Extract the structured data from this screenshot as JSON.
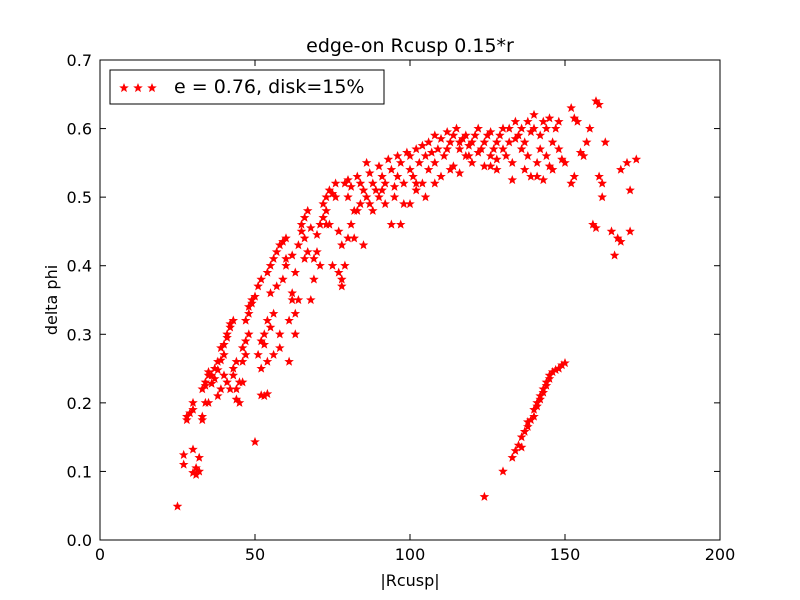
{
  "chart_data": {
    "type": "scatter",
    "title": "edge-on Rcusp 0.15*r",
    "xlabel": "|Rcusp|",
    "ylabel": "delta phi",
    "xlim": [
      0,
      200
    ],
    "ylim": [
      0.0,
      0.7
    ],
    "x_ticks": [
      "0",
      "50",
      "100",
      "150",
      "200"
    ],
    "y_ticks": [
      "0.0",
      "0.1",
      "0.2",
      "0.3",
      "0.4",
      "0.5",
      "0.6",
      "0.7"
    ],
    "grid": false,
    "legend_position": "top-left",
    "marker": "star",
    "color": "#ff0000",
    "series": [
      {
        "name": "e = 0.76, disk=15%",
        "points": [
          [
            25,
            0.049
          ],
          [
            27,
            0.11
          ],
          [
            27,
            0.124
          ],
          [
            28,
            0.175
          ],
          [
            28,
            0.18
          ],
          [
            29,
            0.185
          ],
          [
            30,
            0.19
          ],
          [
            30,
            0.2
          ],
          [
            30,
            0.098
          ],
          [
            31,
            0.095
          ],
          [
            31,
            0.105
          ],
          [
            30,
            0.132
          ],
          [
            32,
            0.12
          ],
          [
            32,
            0.1
          ],
          [
            33,
            0.175
          ],
          [
            33,
            0.18
          ],
          [
            33,
            0.22
          ],
          [
            34,
            0.225
          ],
          [
            34,
            0.23
          ],
          [
            35,
            0.24
          ],
          [
            35,
            0.245
          ],
          [
            36,
            0.228
          ],
          [
            37,
            0.25
          ],
          [
            38,
            0.21
          ],
          [
            38,
            0.248
          ],
          [
            39,
            0.262
          ],
          [
            39,
            0.28
          ],
          [
            40,
            0.285
          ],
          [
            40,
            0.27
          ],
          [
            41,
            0.295
          ],
          [
            41,
            0.3
          ],
          [
            42,
            0.31
          ],
          [
            42,
            0.315
          ],
          [
            43,
            0.32
          ],
          [
            43,
            0.25
          ],
          [
            44,
            0.22
          ],
          [
            44,
            0.205
          ],
          [
            45,
            0.2
          ],
          [
            46,
            0.23
          ],
          [
            46,
            0.26
          ],
          [
            47,
            0.27
          ],
          [
            47,
            0.32
          ],
          [
            48,
            0.33
          ],
          [
            48,
            0.34
          ],
          [
            49,
            0.345
          ],
          [
            49,
            0.35
          ],
          [
            50,
            0.355
          ],
          [
            50,
            0.143
          ],
          [
            51,
            0.37
          ],
          [
            52,
            0.38
          ],
          [
            52,
            0.29
          ],
          [
            53,
            0.21
          ],
          [
            53,
            0.285
          ],
          [
            54,
            0.32
          ],
          [
            54,
            0.39
          ],
          [
            55,
            0.4
          ],
          [
            55,
            0.36
          ],
          [
            56,
            0.41
          ],
          [
            56,
            0.33
          ],
          [
            57,
            0.42
          ],
          [
            57,
            0.37
          ],
          [
            58,
            0.43
          ],
          [
            58,
            0.3
          ],
          [
            59,
            0.38
          ],
          [
            59,
            0.435
          ],
          [
            60,
            0.44
          ],
          [
            60,
            0.4
          ],
          [
            61,
            0.26
          ],
          [
            62,
            0.35
          ],
          [
            62,
            0.415
          ],
          [
            63,
            0.39
          ],
          [
            63,
            0.3
          ],
          [
            64,
            0.43
          ],
          [
            65,
            0.45
          ],
          [
            65,
            0.46
          ],
          [
            66,
            0.44
          ],
          [
            66,
            0.47
          ],
          [
            67,
            0.42
          ],
          [
            67,
            0.48
          ],
          [
            68,
            0.455
          ],
          [
            68,
            0.35
          ],
          [
            69,
            0.38
          ],
          [
            70,
            0.445
          ],
          [
            70,
            0.42
          ],
          [
            71,
            0.46
          ],
          [
            72,
            0.47
          ],
          [
            72,
            0.49
          ],
          [
            73,
            0.5
          ],
          [
            73,
            0.48
          ],
          [
            74,
            0.51
          ],
          [
            74,
            0.46
          ],
          [
            75,
            0.505
          ],
          [
            75,
            0.4
          ],
          [
            76,
            0.52
          ],
          [
            76,
            0.5
          ],
          [
            77,
            0.45
          ],
          [
            77,
            0.39
          ],
          [
            78,
            0.37
          ],
          [
            78,
            0.43
          ],
          [
            79,
            0.52
          ],
          [
            80,
            0.525
          ],
          [
            80,
            0.5
          ],
          [
            81,
            0.515
          ],
          [
            82,
            0.48
          ],
          [
            82,
            0.44
          ],
          [
            83,
            0.53
          ],
          [
            84,
            0.52
          ],
          [
            84,
            0.49
          ],
          [
            85,
            0.51
          ],
          [
            85,
            0.43
          ],
          [
            86,
            0.55
          ],
          [
            86,
            0.5
          ],
          [
            87,
            0.535
          ],
          [
            88,
            0.52
          ],
          [
            88,
            0.48
          ],
          [
            89,
            0.51
          ],
          [
            90,
            0.545
          ],
          [
            90,
            0.5
          ],
          [
            91,
            0.53
          ],
          [
            92,
            0.52
          ],
          [
            92,
            0.49
          ],
          [
            93,
            0.555
          ],
          [
            94,
            0.54
          ],
          [
            94,
            0.46
          ],
          [
            95,
            0.515
          ],
          [
            96,
            0.53
          ],
          [
            96,
            0.56
          ],
          [
            97,
            0.55
          ],
          [
            98,
            0.52
          ],
          [
            98,
            0.49
          ],
          [
            99,
            0.565
          ],
          [
            100,
            0.56
          ],
          [
            100,
            0.54
          ],
          [
            101,
            0.53
          ],
          [
            102,
            0.51
          ],
          [
            102,
            0.57
          ],
          [
            103,
            0.55
          ],
          [
            104,
            0.575
          ],
          [
            104,
            0.52
          ],
          [
            105,
            0.56
          ],
          [
            106,
            0.58
          ],
          [
            106,
            0.54
          ],
          [
            107,
            0.565
          ],
          [
            108,
            0.59
          ],
          [
            108,
            0.55
          ],
          [
            109,
            0.57
          ],
          [
            110,
            0.585
          ],
          [
            110,
            0.53
          ],
          [
            111,
            0.56
          ],
          [
            112,
            0.595
          ],
          [
            112,
            0.57
          ],
          [
            113,
            0.58
          ],
          [
            114,
            0.545
          ],
          [
            114,
            0.59
          ],
          [
            115,
            0.6
          ],
          [
            116,
            0.57
          ],
          [
            116,
            0.58
          ],
          [
            117,
            0.585
          ],
          [
            118,
            0.59
          ],
          [
            118,
            0.56
          ],
          [
            119,
            0.575
          ],
          [
            120,
            0.58
          ],
          [
            120,
            0.55
          ],
          [
            121,
            0.59
          ],
          [
            122,
            0.565
          ],
          [
            122,
            0.6
          ],
          [
            123,
            0.57
          ],
          [
            124,
            0.58
          ],
          [
            124,
            0.545
          ],
          [
            125,
            0.59
          ],
          [
            126,
            0.56
          ],
          [
            126,
            0.595
          ],
          [
            127,
            0.57
          ],
          [
            128,
            0.58
          ],
          [
            128,
            0.54
          ],
          [
            129,
            0.59
          ],
          [
            130,
            0.57
          ],
          [
            130,
            0.6
          ],
          [
            131,
            0.56
          ],
          [
            132,
            0.58
          ],
          [
            132,
            0.6
          ],
          [
            133,
            0.55
          ],
          [
            134,
            0.61
          ],
          [
            134,
            0.585
          ],
          [
            135,
            0.59
          ],
          [
            136,
            0.57
          ],
          [
            136,
            0.6
          ],
          [
            137,
            0.58
          ],
          [
            138,
            0.61
          ],
          [
            138,
            0.56
          ],
          [
            139,
            0.595
          ],
          [
            140,
            0.6
          ],
          [
            140,
            0.62
          ],
          [
            141,
            0.55
          ],
          [
            142,
            0.59
          ],
          [
            142,
            0.57
          ],
          [
            143,
            0.61
          ],
          [
            144,
            0.56
          ],
          [
            144,
            0.6
          ],
          [
            145,
            0.615
          ],
          [
            146,
            0.58
          ],
          [
            146,
            0.54
          ],
          [
            147,
            0.6
          ],
          [
            148,
            0.61
          ],
          [
            148,
            0.57
          ],
          [
            149,
            0.555
          ],
          [
            150,
            0.55
          ],
          [
            152,
            0.63
          ],
          [
            153,
            0.615
          ],
          [
            154,
            0.61
          ],
          [
            155,
            0.565
          ],
          [
            156,
            0.56
          ],
          [
            157,
            0.58
          ],
          [
            158,
            0.6
          ],
          [
            159,
            0.46
          ],
          [
            160,
            0.64
          ],
          [
            160,
            0.455
          ],
          [
            161,
            0.635
          ],
          [
            161,
            0.53
          ],
          [
            162,
            0.52
          ],
          [
            162,
            0.5
          ],
          [
            163,
            0.58
          ],
          [
            165,
            0.45
          ],
          [
            166,
            0.415
          ],
          [
            167,
            0.44
          ],
          [
            168,
            0.54
          ],
          [
            168,
            0.435
          ],
          [
            170,
            0.55
          ],
          [
            171,
            0.51
          ],
          [
            171,
            0.45
          ],
          [
            173,
            0.555
          ],
          [
            153,
            0.53
          ],
          [
            152,
            0.52
          ],
          [
            145,
            0.545
          ],
          [
            143,
            0.525
          ],
          [
            141,
            0.53
          ],
          [
            139,
            0.53
          ],
          [
            137,
            0.54
          ],
          [
            133,
            0.525
          ],
          [
            128,
            0.555
          ],
          [
            126,
            0.545
          ],
          [
            119,
            0.56
          ],
          [
            116,
            0.535
          ],
          [
            113,
            0.54
          ],
          [
            108,
            0.52
          ],
          [
            105,
            0.5
          ],
          [
            102,
            0.52
          ],
          [
            100,
            0.49
          ],
          [
            97,
            0.46
          ],
          [
            95,
            0.5
          ],
          [
            91,
            0.51
          ],
          [
            87,
            0.49
          ],
          [
            83,
            0.48
          ],
          [
            81,
            0.46
          ],
          [
            80,
            0.44
          ],
          [
            79,
            0.4
          ],
          [
            78,
            0.38
          ],
          [
            73,
            0.46
          ],
          [
            71,
            0.4
          ],
          [
            69,
            0.41
          ],
          [
            66,
            0.41
          ],
          [
            64,
            0.35
          ],
          [
            63,
            0.33
          ],
          [
            62,
            0.36
          ],
          [
            61,
            0.32
          ],
          [
            60,
            0.41
          ],
          [
            58,
            0.28
          ],
          [
            56,
            0.27
          ],
          [
            55,
            0.31
          ],
          [
            54,
            0.26
          ],
          [
            53,
            0.3
          ],
          [
            52,
            0.25
          ],
          [
            51,
            0.27
          ],
          [
            48,
            0.3
          ],
          [
            47,
            0.29
          ],
          [
            46,
            0.28
          ],
          [
            45,
            0.23
          ],
          [
            44,
            0.26
          ],
          [
            43,
            0.24
          ],
          [
            42,
            0.22
          ],
          [
            41,
            0.23
          ],
          [
            40,
            0.24
          ],
          [
            39,
            0.22
          ],
          [
            38,
            0.26
          ],
          [
            37,
            0.235
          ],
          [
            36,
            0.24
          ],
          [
            35,
            0.2
          ],
          [
            34,
            0.2
          ],
          [
            54,
            0.213
          ],
          [
            52,
            0.211
          ],
          [
            124,
            0.063
          ],
          [
            130,
            0.1
          ],
          [
            133,
            0.12
          ],
          [
            134,
            0.13
          ],
          [
            135,
            0.138
          ],
          [
            136,
            0.15
          ],
          [
            136,
            0.135
          ],
          [
            137,
            0.158
          ],
          [
            138,
            0.165
          ],
          [
            138,
            0.172
          ],
          [
            139,
            0.175
          ],
          [
            140,
            0.18
          ],
          [
            140,
            0.19
          ],
          [
            141,
            0.195
          ],
          [
            141,
            0.2
          ],
          [
            142,
            0.205
          ],
          [
            142,
            0.21
          ],
          [
            143,
            0.215
          ],
          [
            143,
            0.22
          ],
          [
            144,
            0.225
          ],
          [
            144,
            0.23
          ],
          [
            145,
            0.235
          ],
          [
            145,
            0.24
          ],
          [
            146,
            0.245
          ],
          [
            147,
            0.248
          ],
          [
            148,
            0.25
          ],
          [
            149,
            0.255
          ],
          [
            150,
            0.258
          ]
        ]
      }
    ]
  }
}
